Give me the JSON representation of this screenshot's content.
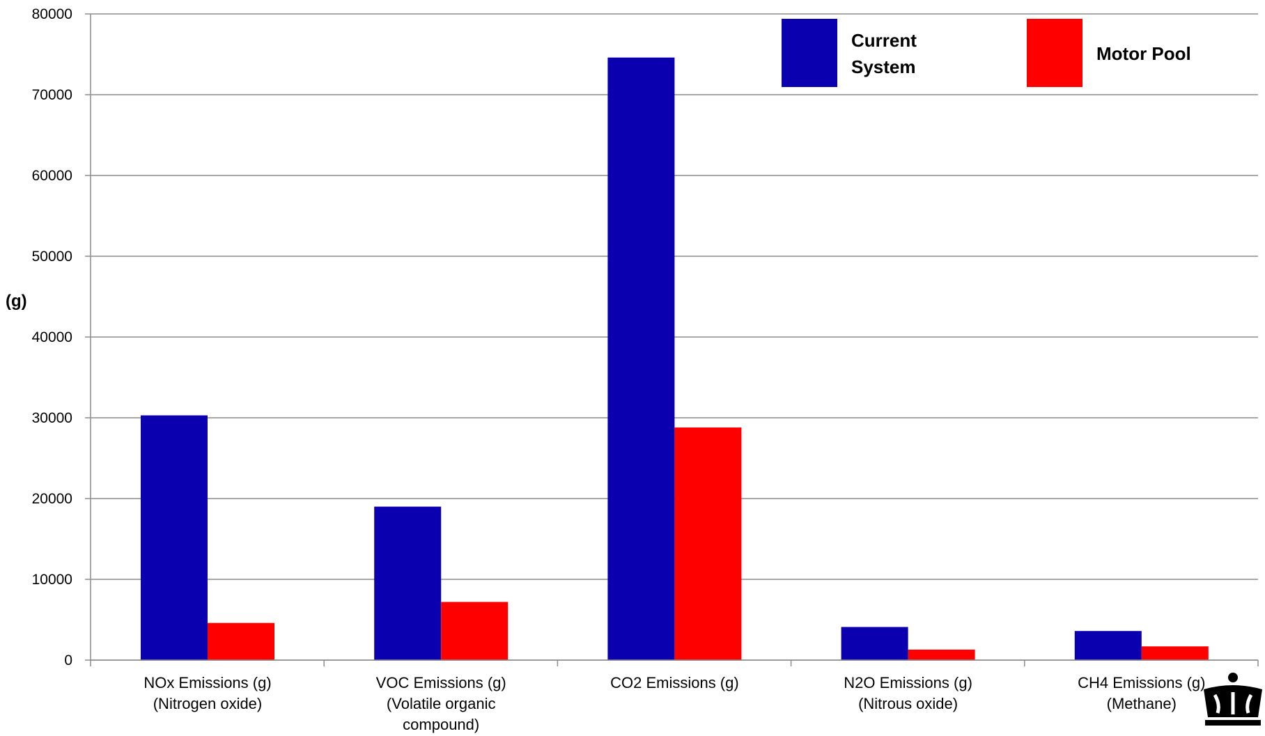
{
  "chart_data": {
    "type": "bar",
    "title": "",
    "xlabel": "",
    "ylabel": "(g)",
    "ylim": [
      0,
      80000
    ],
    "yticks": [
      0,
      10000,
      20000,
      30000,
      40000,
      50000,
      60000,
      70000,
      80000
    ],
    "grid": true,
    "legend_position": "top-right",
    "categories": [
      [
        "NOx Emissions (g)",
        "(Nitrogen oxide)"
      ],
      [
        "VOC Emissions (g)",
        "(Volatile organic",
        "compound)"
      ],
      [
        "CO2 Emissions (g)"
      ],
      [
        "N2O Emissions (g)",
        "(Nitrous oxide)"
      ],
      [
        "CH4 Emissions (g)",
        "(Methane)"
      ]
    ],
    "series": [
      {
        "name": [
          "Current",
          "System"
        ],
        "color": "#0a00b0",
        "values": [
          30300,
          19000,
          74600,
          4100,
          3600
        ]
      },
      {
        "name": [
          "Motor Pool"
        ],
        "color": "#ff0000",
        "values": [
          4600,
          7200,
          28800,
          1300,
          1700
        ]
      }
    ]
  },
  "logo": {
    "icon": "crown-icon"
  }
}
